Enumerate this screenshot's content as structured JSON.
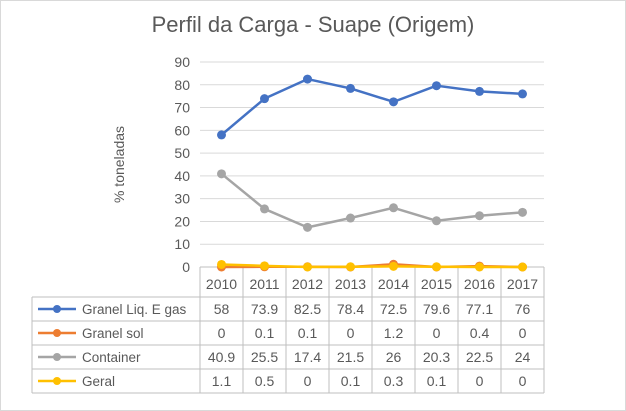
{
  "chart_data": {
    "type": "line",
    "title": "Perfil da Carga - Suape  (Origem)",
    "ylabel": "% toneladas",
    "xlabel": "",
    "ylim": [
      0,
      90
    ],
    "yticks": [
      0,
      10,
      20,
      30,
      40,
      50,
      60,
      70,
      80,
      90
    ],
    "grid": true,
    "categories": [
      "2010",
      "2011",
      "2012",
      "2013",
      "2014",
      "2015",
      "2016",
      "2017"
    ],
    "series": [
      {
        "name": "Granel Liq. E gas",
        "color": "#4472C4",
        "values": [
          58,
          73.9,
          82.5,
          78.4,
          72.5,
          79.6,
          77.1,
          76
        ],
        "labels": [
          "58",
          "73.9",
          "82.5",
          "78.4",
          "72.5",
          "79.6",
          "77.1",
          "76"
        ]
      },
      {
        "name": "Granel sol",
        "color": "#ED7D31",
        "values": [
          0,
          0.1,
          0.1,
          0,
          1.2,
          0,
          0.4,
          0
        ],
        "labels": [
          "0",
          "0.1",
          "0.1",
          "0",
          "1.2",
          "0",
          "0.4",
          "0"
        ]
      },
      {
        "name": "Container",
        "color": "#A5A5A5",
        "values": [
          40.9,
          25.5,
          17.4,
          21.5,
          26,
          20.3,
          22.5,
          24
        ],
        "labels": [
          "40.9",
          "25.5",
          "17.4",
          "21.5",
          "26",
          "20.3",
          "22.5",
          "24"
        ]
      },
      {
        "name": "Geral",
        "color": "#FFC000",
        "values": [
          1.1,
          0.5,
          0,
          0.1,
          0.3,
          0.1,
          0,
          0
        ],
        "labels": [
          "1.1",
          "0.5",
          "0",
          "0.1",
          "0.3",
          "0.1",
          "0",
          "0"
        ]
      }
    ]
  }
}
